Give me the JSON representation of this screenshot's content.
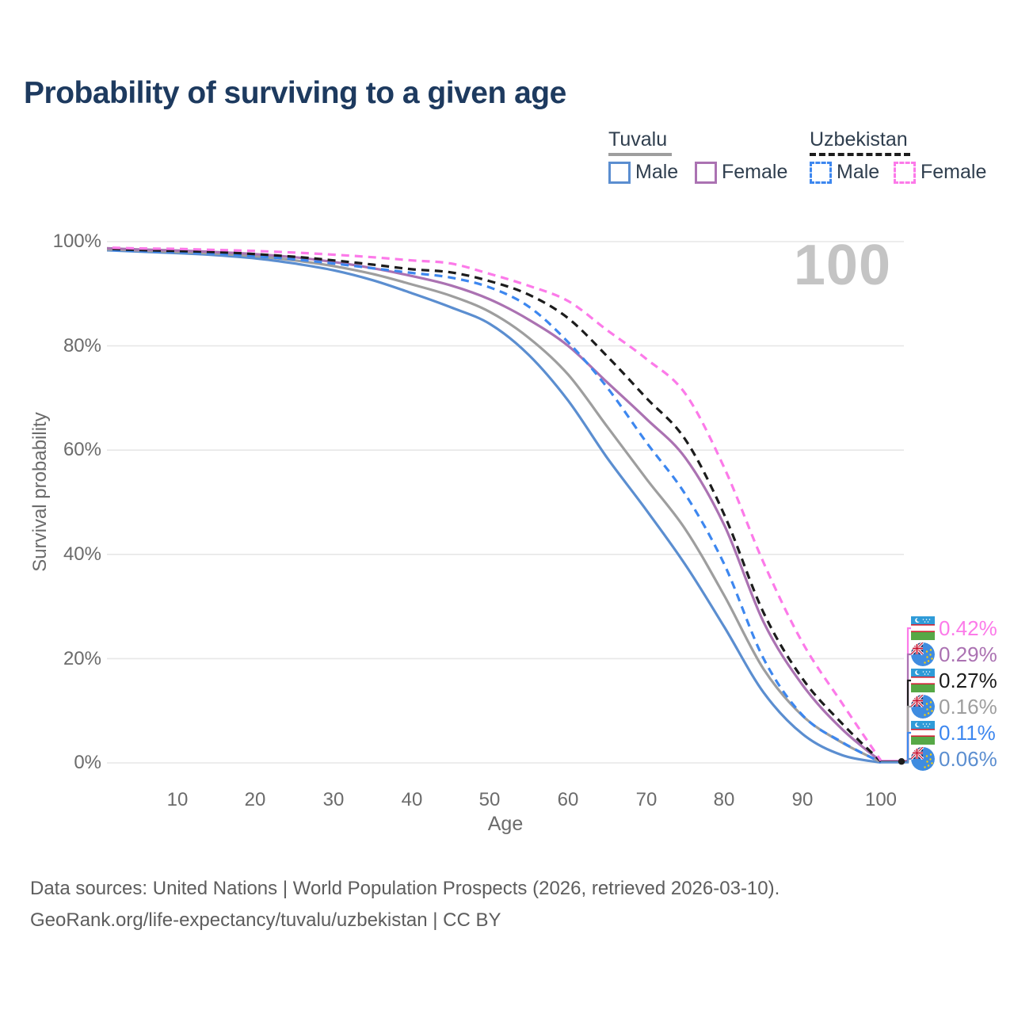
{
  "title": "Probability of surviving to a given age",
  "watermark": "100",
  "legend": {
    "groups": [
      {
        "country": "Tuvalu",
        "line_style": "solid",
        "underline_color": "#9e9e9e",
        "items": [
          {
            "label": "Male",
            "color": "#5b8ed0",
            "dashed": false
          },
          {
            "label": "Female",
            "color": "#ab72b2",
            "dashed": false
          }
        ]
      },
      {
        "country": "Uzbekistan",
        "line_style": "dashed",
        "underline_color": "#1c1c1c",
        "items": [
          {
            "label": "Male",
            "color": "#3d87ef",
            "dashed": true
          },
          {
            "label": "Female",
            "color": "#fc7ae9",
            "dashed": true
          }
        ]
      }
    ]
  },
  "axes": {
    "y_label": "Survival probability",
    "x_label": "Age",
    "y_ticks": [
      "100%",
      "80%",
      "60%",
      "40%",
      "20%",
      "0%"
    ],
    "y_tick_values": [
      100,
      80,
      60,
      40,
      20,
      0
    ],
    "x_ticks": [
      "10",
      "20",
      "30",
      "40",
      "50",
      "60",
      "70",
      "80",
      "90",
      "100"
    ],
    "x_tick_values": [
      10,
      20,
      30,
      40,
      50,
      60,
      70,
      80,
      90,
      100
    ],
    "x_range": [
      1,
      100
    ],
    "y_range": [
      0,
      100
    ],
    "grid": "horizontal"
  },
  "chart_data": {
    "type": "line",
    "title": "Probability of surviving to a given age",
    "xlabel": "Age",
    "ylabel": "Survival probability",
    "x": [
      0,
      5,
      10,
      15,
      20,
      25,
      30,
      35,
      40,
      45,
      50,
      55,
      60,
      65,
      70,
      75,
      80,
      85,
      90,
      95,
      100
    ],
    "series": [
      {
        "name": "Tuvalu Male",
        "country": "Tuvalu",
        "sex": "Male",
        "color": "#5b8ed0",
        "dashed": false,
        "values": [
          98.4,
          98.1,
          97.8,
          97.4,
          96.8,
          95.8,
          94.5,
          92.6,
          90.1,
          87.4,
          84.2,
          78.2,
          69.5,
          58.5,
          48.5,
          38.0,
          26.0,
          13.5,
          5.5,
          1.5,
          0.06
        ]
      },
      {
        "name": "Tuvalu",
        "country": "Tuvalu",
        "sex": "Both",
        "color": "#9e9e9e",
        "dashed": false,
        "values": [
          98.6,
          98.3,
          98.0,
          97.7,
          97.2,
          96.4,
          95.3,
          93.8,
          91.8,
          89.6,
          86.5,
          81.5,
          74.5,
          64.5,
          54.5,
          44.8,
          32.0,
          18.0,
          9.0,
          3.9,
          0.16
        ]
      },
      {
        "name": "Tuvalu Female",
        "country": "Tuvalu",
        "sex": "Female",
        "color": "#ab72b2",
        "dashed": false,
        "values": [
          98.8,
          98.5,
          98.3,
          98.0,
          97.6,
          97.0,
          96.1,
          94.9,
          93.4,
          91.6,
          88.9,
          85.0,
          80.0,
          73.0,
          66.0,
          58.5,
          45.5,
          27.0,
          14.9,
          6.5,
          0.29
        ]
      },
      {
        "name": "Uzbekistan Male",
        "country": "Uzbekistan",
        "sex": "Male",
        "color": "#3d87ef",
        "dashed": true,
        "values": [
          98.5,
          98.2,
          98.0,
          97.7,
          97.2,
          96.6,
          95.8,
          94.9,
          94.0,
          93.1,
          91.2,
          87.5,
          80.7,
          72.0,
          61.5,
          51.5,
          38.0,
          20.0,
          9.1,
          4.0,
          0.11
        ]
      },
      {
        "name": "Uzbekistan",
        "country": "Uzbekistan",
        "sex": "Both",
        "color": "#1c1c1c",
        "dashed": true,
        "values": [
          98.7,
          98.4,
          98.2,
          98.0,
          97.6,
          97.1,
          96.4,
          95.6,
          94.7,
          94.1,
          92.4,
          89.8,
          85.3,
          78.0,
          70.0,
          62.0,
          47.5,
          28.8,
          16.1,
          7.6,
          0.27
        ]
      },
      {
        "name": "Uzbekistan Female",
        "country": "Uzbekistan",
        "sex": "Female",
        "color": "#fc7ae9",
        "dashed": true,
        "values": [
          98.9,
          98.7,
          98.6,
          98.4,
          98.2,
          97.9,
          97.5,
          97.0,
          96.4,
          95.8,
          93.8,
          91.5,
          88.6,
          83.0,
          77.5,
          70.8,
          56.5,
          38.4,
          23.0,
          11.5,
          0.42
        ]
      }
    ]
  },
  "end_labels": [
    {
      "value": "0.42%",
      "flag": "uz",
      "color": "#fc7ae9",
      "series": "Uzbekistan Female"
    },
    {
      "value": "0.29%",
      "flag": "tv",
      "color": "#ab72b2",
      "series": "Tuvalu Female"
    },
    {
      "value": "0.27%",
      "flag": "uz",
      "color": "#1c1c1c",
      "series": "Uzbekistan"
    },
    {
      "value": "0.16%",
      "flag": "tv",
      "color": "#9e9e9e",
      "series": "Tuvalu"
    },
    {
      "value": "0.11%",
      "flag": "uz",
      "color": "#3d87ef",
      "series": "Uzbekistan Male"
    },
    {
      "value": "0.06%",
      "flag": "tv",
      "color": "#5b8ed0",
      "series": "Tuvalu Male"
    }
  ],
  "footer": {
    "line1": "Data sources: United Nations | World Population Prospects (2026, retrieved 2026-03-10).",
    "line2": "GeoRank.org/life-expectancy/tuvalu/uzbekistan | CC BY"
  }
}
